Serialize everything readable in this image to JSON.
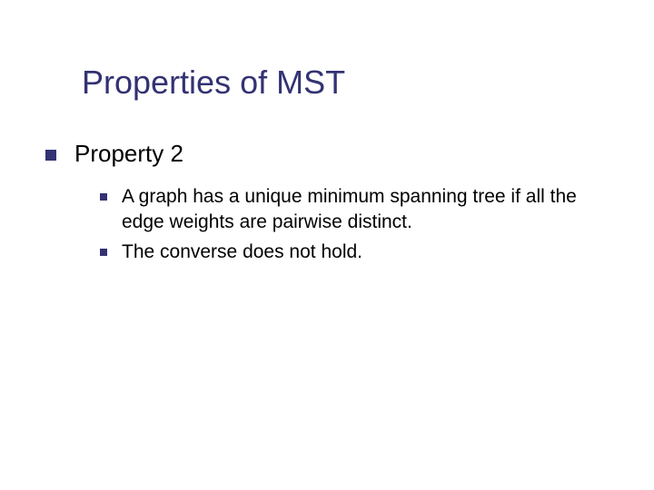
{
  "slide": {
    "title": "Properties of MST",
    "title_color": "#333273",
    "title_fontsize": 36,
    "background_color": "#ffffff",
    "bullet_color": "#333273",
    "text_color": "#000000",
    "level1_fontsize": 26,
    "level2_fontsize": 21,
    "level1_bullet_size": 12,
    "level2_bullet_size": 8,
    "content": {
      "heading": "Property 2",
      "points": [
        "A graph has a unique minimum spanning tree if all the edge weights are pairwise distinct.",
        "The converse does not hold."
      ]
    }
  }
}
